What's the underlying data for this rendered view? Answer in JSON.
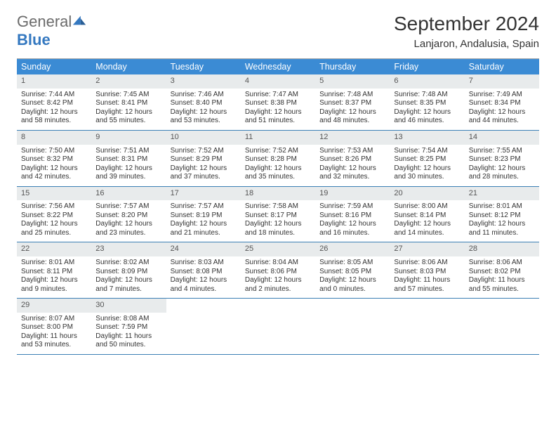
{
  "logo": {
    "general": "General",
    "blue": "Blue"
  },
  "title": "September 2024",
  "location": "Lanjaron, Andalusia, Spain",
  "day_names": [
    "Sunday",
    "Monday",
    "Tuesday",
    "Wednesday",
    "Thursday",
    "Friday",
    "Saturday"
  ],
  "header_bg": "#3b8bd4",
  "daynum_bg": "#e8ebec",
  "border_color": "#3b7fb5",
  "weeks": [
    [
      {
        "n": "1",
        "sr": "7:44 AM",
        "ss": "8:42 PM",
        "dl": "12 hours and 58 minutes."
      },
      {
        "n": "2",
        "sr": "7:45 AM",
        "ss": "8:41 PM",
        "dl": "12 hours and 55 minutes."
      },
      {
        "n": "3",
        "sr": "7:46 AM",
        "ss": "8:40 PM",
        "dl": "12 hours and 53 minutes."
      },
      {
        "n": "4",
        "sr": "7:47 AM",
        "ss": "8:38 PM",
        "dl": "12 hours and 51 minutes."
      },
      {
        "n": "5",
        "sr": "7:48 AM",
        "ss": "8:37 PM",
        "dl": "12 hours and 48 minutes."
      },
      {
        "n": "6",
        "sr": "7:48 AM",
        "ss": "8:35 PM",
        "dl": "12 hours and 46 minutes."
      },
      {
        "n": "7",
        "sr": "7:49 AM",
        "ss": "8:34 PM",
        "dl": "12 hours and 44 minutes."
      }
    ],
    [
      {
        "n": "8",
        "sr": "7:50 AM",
        "ss": "8:32 PM",
        "dl": "12 hours and 42 minutes."
      },
      {
        "n": "9",
        "sr": "7:51 AM",
        "ss": "8:31 PM",
        "dl": "12 hours and 39 minutes."
      },
      {
        "n": "10",
        "sr": "7:52 AM",
        "ss": "8:29 PM",
        "dl": "12 hours and 37 minutes."
      },
      {
        "n": "11",
        "sr": "7:52 AM",
        "ss": "8:28 PM",
        "dl": "12 hours and 35 minutes."
      },
      {
        "n": "12",
        "sr": "7:53 AM",
        "ss": "8:26 PM",
        "dl": "12 hours and 32 minutes."
      },
      {
        "n": "13",
        "sr": "7:54 AM",
        "ss": "8:25 PM",
        "dl": "12 hours and 30 minutes."
      },
      {
        "n": "14",
        "sr": "7:55 AM",
        "ss": "8:23 PM",
        "dl": "12 hours and 28 minutes."
      }
    ],
    [
      {
        "n": "15",
        "sr": "7:56 AM",
        "ss": "8:22 PM",
        "dl": "12 hours and 25 minutes."
      },
      {
        "n": "16",
        "sr": "7:57 AM",
        "ss": "8:20 PM",
        "dl": "12 hours and 23 minutes."
      },
      {
        "n": "17",
        "sr": "7:57 AM",
        "ss": "8:19 PM",
        "dl": "12 hours and 21 minutes."
      },
      {
        "n": "18",
        "sr": "7:58 AM",
        "ss": "8:17 PM",
        "dl": "12 hours and 18 minutes."
      },
      {
        "n": "19",
        "sr": "7:59 AM",
        "ss": "8:16 PM",
        "dl": "12 hours and 16 minutes."
      },
      {
        "n": "20",
        "sr": "8:00 AM",
        "ss": "8:14 PM",
        "dl": "12 hours and 14 minutes."
      },
      {
        "n": "21",
        "sr": "8:01 AM",
        "ss": "8:12 PM",
        "dl": "12 hours and 11 minutes."
      }
    ],
    [
      {
        "n": "22",
        "sr": "8:01 AM",
        "ss": "8:11 PM",
        "dl": "12 hours and 9 minutes."
      },
      {
        "n": "23",
        "sr": "8:02 AM",
        "ss": "8:09 PM",
        "dl": "12 hours and 7 minutes."
      },
      {
        "n": "24",
        "sr": "8:03 AM",
        "ss": "8:08 PM",
        "dl": "12 hours and 4 minutes."
      },
      {
        "n": "25",
        "sr": "8:04 AM",
        "ss": "8:06 PM",
        "dl": "12 hours and 2 minutes."
      },
      {
        "n": "26",
        "sr": "8:05 AM",
        "ss": "8:05 PM",
        "dl": "12 hours and 0 minutes."
      },
      {
        "n": "27",
        "sr": "8:06 AM",
        "ss": "8:03 PM",
        "dl": "11 hours and 57 minutes."
      },
      {
        "n": "28",
        "sr": "8:06 AM",
        "ss": "8:02 PM",
        "dl": "11 hours and 55 minutes."
      }
    ],
    [
      {
        "n": "29",
        "sr": "8:07 AM",
        "ss": "8:00 PM",
        "dl": "11 hours and 53 minutes."
      },
      {
        "n": "30",
        "sr": "8:08 AM",
        "ss": "7:59 PM",
        "dl": "11 hours and 50 minutes."
      },
      null,
      null,
      null,
      null,
      null
    ]
  ],
  "labels": {
    "sunrise": "Sunrise:",
    "sunset": "Sunset:",
    "daylight": "Daylight:"
  }
}
